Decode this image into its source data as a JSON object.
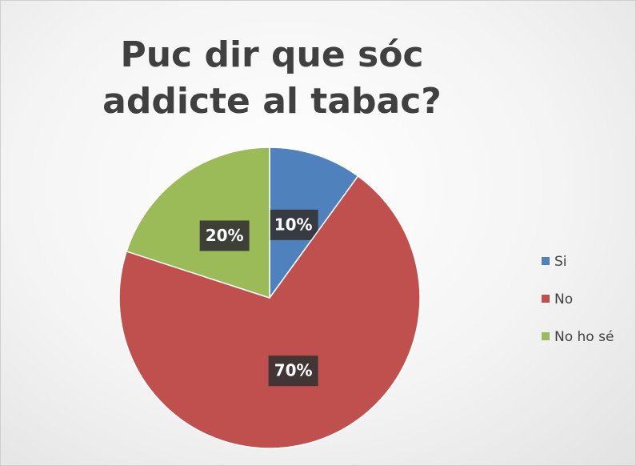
{
  "chart_data": {
    "type": "pie",
    "title": "Puc dir que sóc addicte al tabac?",
    "categories": [
      "Si",
      "No",
      "No ho sé"
    ],
    "values": [
      10,
      70,
      20
    ],
    "value_labels": [
      "10%",
      "70%",
      "20%"
    ],
    "colors": [
      "#4f81bd",
      "#c0504d",
      "#9bbb59"
    ],
    "legend": "right"
  }
}
